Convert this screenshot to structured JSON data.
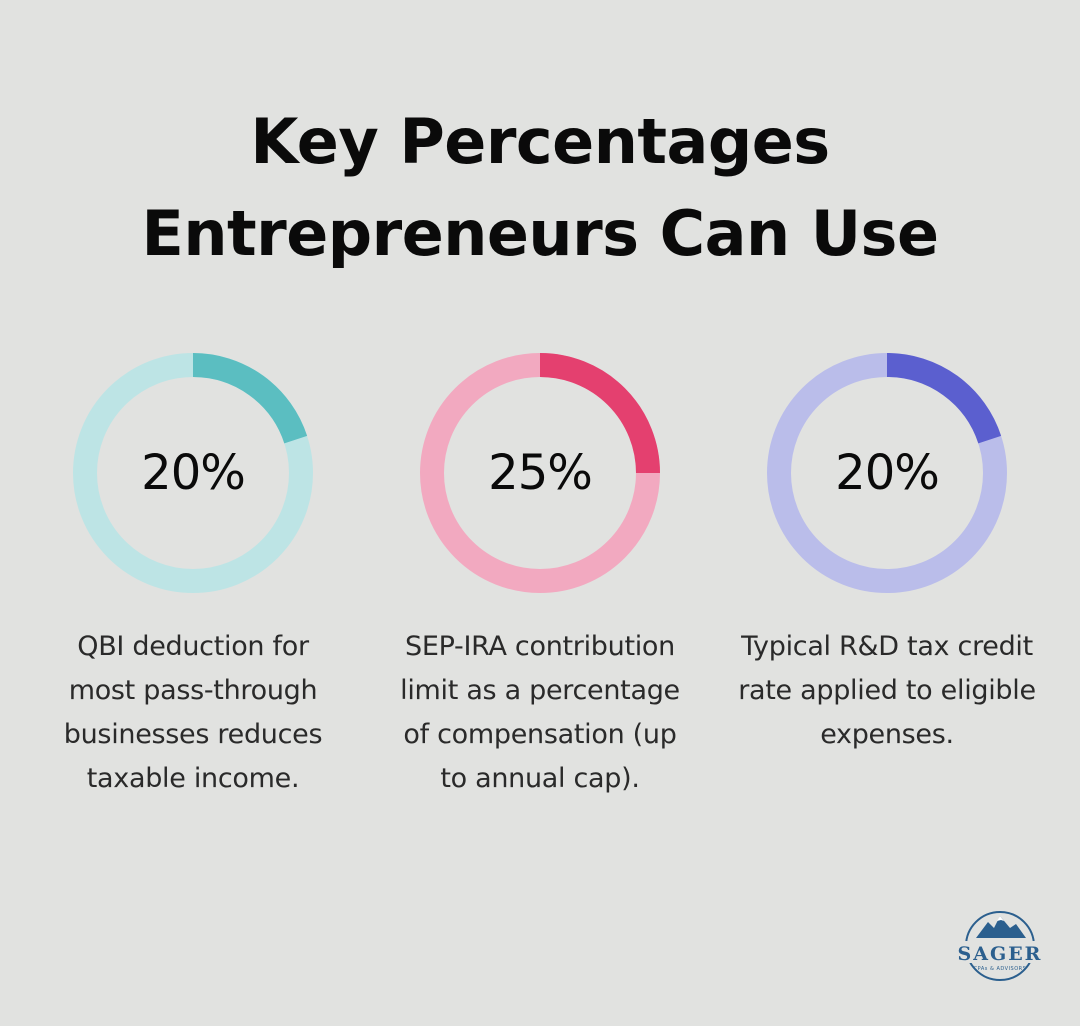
{
  "title": {
    "line1": "Key Percentages",
    "line2": "Entrepreneurs Can Use"
  },
  "stats": [
    {
      "value_label": "20%",
      "fraction": 0.2,
      "description": "QBI deduction for most pass-through businesses reduces taxable income.",
      "track_color": "#bde4e5",
      "arc_color": "#5bbec1"
    },
    {
      "value_label": "25%",
      "fraction": 0.25,
      "description": "SEP-IRA contribution limit as a percentage of compensation (up to annual cap).",
      "track_color": "#f2a9c0",
      "arc_color": "#e4406f"
    },
    {
      "value_label": "20%",
      "fraction": 0.2,
      "description": "Typical R&D tax credit rate applied to eligible expenses.",
      "track_color": "#babdea",
      "arc_color": "#5b5fcf"
    }
  ],
  "logo": {
    "name": "SAGER",
    "tagline": "CPAs & ADVISORS",
    "color": "#2b5f8e"
  }
}
